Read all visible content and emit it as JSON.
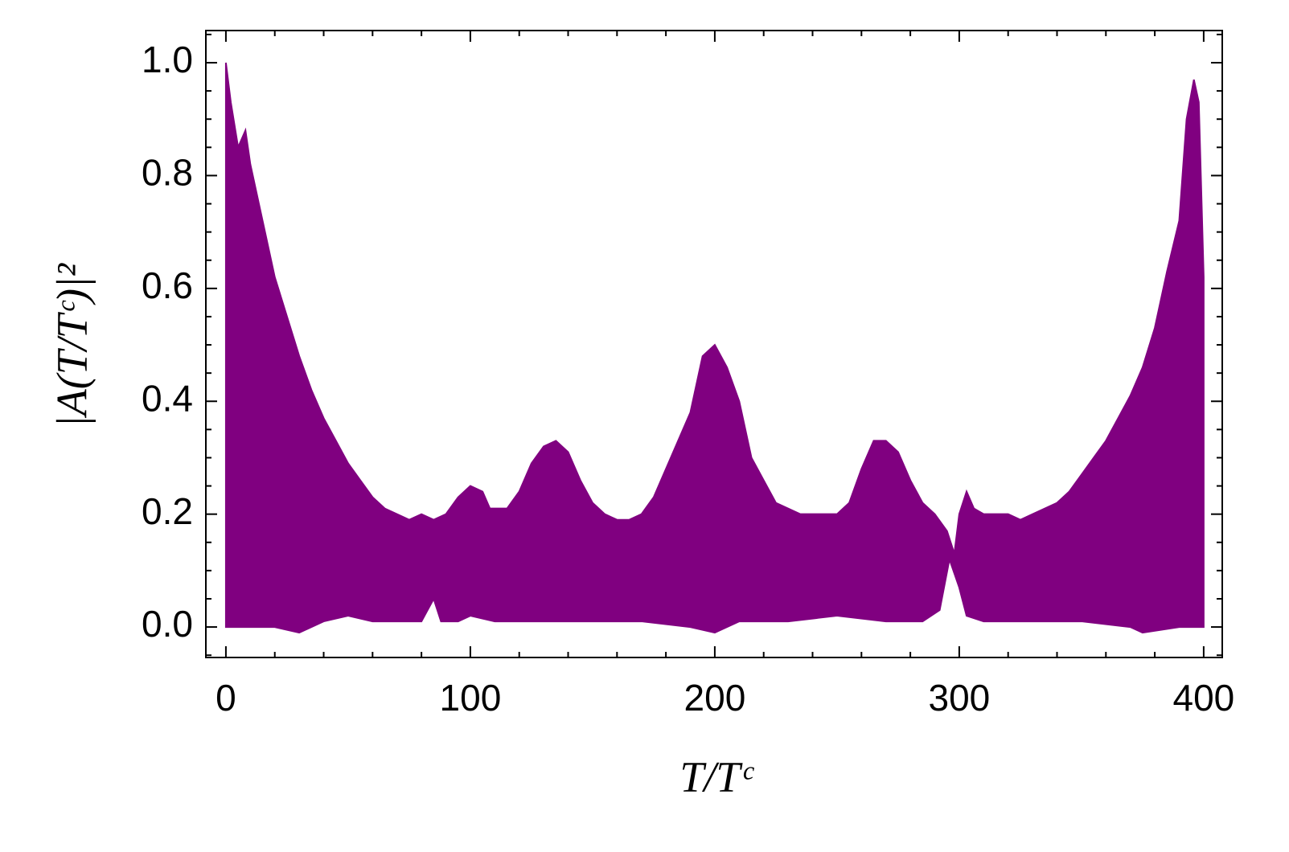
{
  "chart_data": {
    "type": "band",
    "xlabel": "T/Tᶜ",
    "ylabel": "|A(T/Tᶜ)|²",
    "color": "#800080",
    "xlim": [
      -8.2,
      407.6
    ],
    "ylim": [
      -0.054,
      1.057
    ],
    "xticks": [
      0,
      100,
      200,
      300,
      400
    ],
    "yticks": [
      {
        "value": 0,
        "label": "0.0"
      },
      {
        "value": 0.2,
        "label": "0.2"
      },
      {
        "value": 0.4,
        "label": "0.4"
      },
      {
        "value": 0.6,
        "label": "0.6"
      },
      {
        "value": 0.8,
        "label": "0.8"
      },
      {
        "value": 1.0,
        "label": "1.0"
      }
    ],
    "xminorticks": [
      20,
      40,
      60,
      80,
      120,
      140,
      160,
      180,
      220,
      240,
      260,
      280,
      320,
      340,
      360,
      380
    ],
    "yminorticks": [
      -0.05,
      0.05,
      0.1,
      0.15,
      0.25,
      0.3,
      0.35,
      0.45,
      0.5,
      0.55,
      0.65,
      0.7,
      0.75,
      0.85,
      0.9,
      0.95,
      1.05
    ],
    "series": [
      {
        "x": [
          0,
          2,
          5,
          8,
          10,
          15,
          20,
          25,
          30,
          35,
          40,
          45,
          50,
          55,
          60,
          65,
          70,
          75,
          80,
          85,
          90,
          95,
          100,
          105,
          108,
          115,
          120,
          125,
          130,
          135,
          140,
          145,
          150,
          155,
          160,
          165,
          170,
          175,
          180,
          185,
          190,
          195,
          200,
          205,
          210,
          215,
          220,
          225,
          230,
          235,
          240,
          245,
          250,
          255,
          260,
          265,
          270,
          275,
          280,
          285,
          290,
          295,
          298,
          300,
          303,
          306,
          310,
          315,
          320,
          325,
          330,
          335,
          340,
          345,
          350,
          355,
          360,
          365,
          370,
          375,
          380,
          385,
          390,
          393,
          396,
          398,
          400
        ],
        "values": [
          1.0,
          0.93,
          0.85,
          0.88,
          0.82,
          0.72,
          0.62,
          0.55,
          0.48,
          0.42,
          0.37,
          0.33,
          0.29,
          0.26,
          0.23,
          0.21,
          0.2,
          0.19,
          0.2,
          0.19,
          0.2,
          0.23,
          0.25,
          0.24,
          0.21,
          0.21,
          0.24,
          0.29,
          0.32,
          0.33,
          0.31,
          0.26,
          0.22,
          0.2,
          0.19,
          0.19,
          0.2,
          0.23,
          0.28,
          0.33,
          0.38,
          0.48,
          0.5,
          0.46,
          0.4,
          0.3,
          0.26,
          0.22,
          0.21,
          0.2,
          0.2,
          0.2,
          0.2,
          0.22,
          0.28,
          0.33,
          0.33,
          0.31,
          0.26,
          0.22,
          0.2,
          0.17,
          0.13,
          0.2,
          0.24,
          0.21,
          0.2,
          0.2,
          0.2,
          0.19,
          0.2,
          0.21,
          0.22,
          0.24,
          0.27,
          0.3,
          0.33,
          0.37,
          0.41,
          0.46,
          0.53,
          0.63,
          0.72,
          0.9,
          0.97,
          0.93,
          0.62
        ]
      },
      {
        "x": [
          0,
          20,
          30,
          40,
          50,
          60,
          70,
          80,
          85,
          88,
          95,
          100,
          110,
          130,
          150,
          170,
          190,
          200,
          210,
          230,
          250,
          270,
          285,
          292,
          296,
          300,
          303,
          310,
          330,
          350,
          370,
          375,
          390,
          400
        ],
        "values": [
          0,
          0,
          -0.01,
          0.01,
          0.02,
          0.01,
          0.01,
          0.01,
          0.05,
          0.01,
          0.01,
          0.02,
          0.01,
          0.01,
          0.01,
          0.01,
          0.0,
          -0.01,
          0.01,
          0.01,
          0.02,
          0.01,
          0.01,
          0.03,
          0.12,
          0.07,
          0.02,
          0.01,
          0.01,
          0.01,
          0.0,
          -0.01,
          0.0,
          0.0
        ]
      }
    ]
  }
}
